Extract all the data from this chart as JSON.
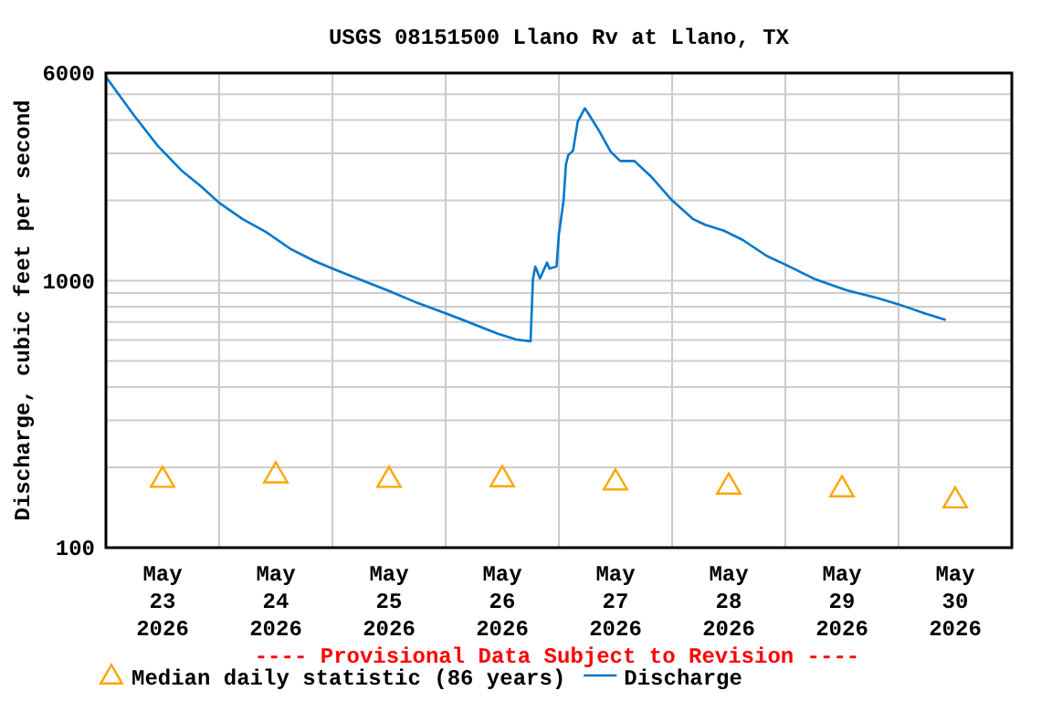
{
  "chart_data": {
    "type": "line",
    "title": "USGS 08151500 Llano Rv at Llano, TX",
    "ylabel": "Discharge, cubic feet per second",
    "annotations": [
      "---- Provisional Data Subject to Revision ----"
    ],
    "xlim": [
      "2026-05-23T00:00",
      "2026-05-31T00:00"
    ],
    "xticks": [
      {
        "value": "2026-05-23T00:00",
        "label": null
      },
      {
        "value": "2026-05-23T12:00",
        "label": "May\n23\n2026"
      },
      {
        "value": "2026-05-24T00:00",
        "label": null
      },
      {
        "value": "2026-05-24T12:00",
        "label": "May\n24\n2026"
      },
      {
        "value": "2026-05-25T00:00",
        "label": null
      },
      {
        "value": "2026-05-25T12:00",
        "label": "May\n25\n2026"
      },
      {
        "value": "2026-05-26T00:00",
        "label": null
      },
      {
        "value": "2026-05-26T12:00",
        "label": "May\n26\n2026"
      },
      {
        "value": "2026-05-27T00:00",
        "label": null
      },
      {
        "value": "2026-05-27T12:00",
        "label": "May\n27\n2026"
      },
      {
        "value": "2026-05-28T00:00",
        "label": null
      },
      {
        "value": "2026-05-28T12:00",
        "label": "May\n28\n2026"
      },
      {
        "value": "2026-05-29T00:00",
        "label": null
      },
      {
        "value": "2026-05-29T12:00",
        "label": "May\n29\n2026"
      },
      {
        "value": "2026-05-30T00:00",
        "label": null
      },
      {
        "value": "2026-05-30T12:00",
        "label": "May\n30\n2026"
      },
      {
        "value": "2026-05-31T00:00",
        "label": null
      }
    ],
    "ylim": [
      100,
      6000
    ],
    "log": true,
    "yticks": [
      100,
      {
        "value": 200,
        "label": null
      },
      {
        "value": 300,
        "label": null
      },
      {
        "value": 400,
        "label": null
      },
      {
        "value": 500,
        "label": null
      },
      {
        "value": 600,
        "label": null
      },
      {
        "value": 700,
        "label": null
      },
      {
        "value": 800,
        "label": null
      },
      {
        "value": 900,
        "label": null
      },
      1000,
      {
        "value": 2000,
        "label": null
      },
      {
        "value": 3000,
        "label": null
      },
      {
        "value": 4000,
        "label": null
      },
      {
        "value": 5000,
        "label": null
      },
      6000
    ],
    "grid": true,
    "legend": "bottom",
    "series": [
      {
        "name": "Median daily statistic (86 years)",
        "type": "scatter",
        "marker": "triangle",
        "color": "#ffa500",
        "x": [
          "2026-05-23T12:00",
          "2026-05-24T12:00",
          "2026-05-25T12:00",
          "2026-05-26T12:00",
          "2026-05-27T12:00",
          "2026-05-28T12:00",
          "2026-05-29T12:00",
          "2026-05-30T12:00"
        ],
        "values": [
          179,
          186,
          179,
          180,
          175,
          169,
          165,
          150
        ]
      },
      {
        "name": "Discharge",
        "type": "line",
        "marker": "none",
        "color": "#0077cc",
        "x": [
          "2026-05-23T00:00",
          "2026-05-23T06:00",
          "2026-05-23T11:00",
          "2026-05-23T16:00",
          "2026-05-23T20:00",
          "2026-05-24T00:00",
          "2026-05-24T05:00",
          "2026-05-24T10:00",
          "2026-05-24T15:00",
          "2026-05-24T20:00",
          "2026-05-25T00:00",
          "2026-05-25T04:00",
          "2026-05-25T12:00",
          "2026-05-25T18:00",
          "2026-05-26T00:00",
          "2026-05-26T05:00",
          "2026-05-26T11:00",
          "2026-05-26T15:00",
          "2026-05-26T18:00",
          "2026-05-26T18:30",
          "2026-05-26T19:00",
          "2026-05-26T20:00",
          "2026-05-26T21:30",
          "2026-05-26T22:00",
          "2026-05-26T23:30",
          "2026-05-27T00:00",
          "2026-05-27T01:00",
          "2026-05-27T01:30",
          "2026-05-27T02:00",
          "2026-05-27T03:00",
          "2026-05-27T04:00",
          "2026-05-27T05:30",
          "2026-05-27T06:30",
          "2026-05-27T08:30",
          "2026-05-27T11:00",
          "2026-05-27T13:00",
          "2026-05-27T16:00",
          "2026-05-27T19:30",
          "2026-05-28T00:00",
          "2026-05-28T04:30",
          "2026-05-28T07:00",
          "2026-05-28T11:00",
          "2026-05-28T15:00",
          "2026-05-28T20:00",
          "2026-05-29T00:00",
          "2026-05-29T06:30",
          "2026-05-29T13:00",
          "2026-05-29T19:30",
          "2026-05-30T00:00",
          "2026-05-30T05:30",
          "2026-05-30T10:00"
        ],
        "values": [
          5800,
          4150,
          3200,
          2590,
          2270,
          1960,
          1700,
          1520,
          1320,
          1190,
          1110,
          1040,
          916,
          826,
          755,
          698,
          634,
          602,
          593,
          1010,
          1130,
          1020,
          1170,
          1110,
          1130,
          1490,
          2000,
          2730,
          2960,
          3070,
          3950,
          4430,
          4160,
          3650,
          3040,
          2810,
          2810,
          2460,
          2000,
          1700,
          1620,
          1540,
          1420,
          1240,
          1150,
          1010,
          921,
          861,
          816,
          755,
          713
        ]
      }
    ]
  }
}
